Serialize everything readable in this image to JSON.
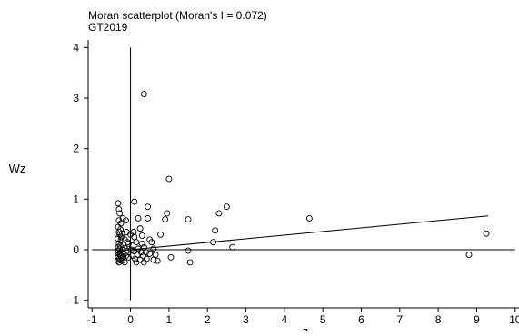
{
  "chart_data": {
    "type": "scatter",
    "title": "Moran scatterplot (Moran's I = 0.072)",
    "subtitle": "GT2019",
    "xlabel": "z",
    "ylabel": "Wz",
    "xlim": [
      -1.1,
      10.1
    ],
    "ylim": [
      -1.15,
      4.15
    ],
    "xticks": [
      "-1",
      "0",
      "1",
      "2",
      "3",
      "4",
      "5",
      "6",
      "7",
      "8",
      "9",
      "10"
    ],
    "yticks": [
      "-1",
      "0",
      "1",
      "2",
      "3",
      "4"
    ],
    "grid": false,
    "fit_line": {
      "intercept": 0.0,
      "slope": 0.072
    },
    "reference_lines": {
      "x": 0,
      "y": 0
    },
    "colors": {
      "points": "#000000",
      "axes": "#000000",
      "background": "#ffffff"
    },
    "points": [
      [
        0.35,
        3.08
      ],
      [
        1.0,
        1.4
      ],
      [
        0.1,
        0.95
      ],
      [
        0.45,
        0.85
      ],
      [
        0.95,
        0.72
      ],
      [
        0.2,
        0.62
      ],
      [
        0.45,
        0.62
      ],
      [
        0.9,
        0.6
      ],
      [
        1.5,
        0.6
      ],
      [
        2.3,
        0.72
      ],
      [
        2.5,
        0.85
      ],
      [
        4.65,
        0.62
      ],
      [
        2.2,
        0.38
      ],
      [
        2.15,
        0.15
      ],
      [
        2.65,
        0.05
      ],
      [
        1.5,
        -0.02
      ],
      [
        1.55,
        -0.25
      ],
      [
        1.05,
        -0.15
      ],
      [
        0.7,
        -0.22
      ],
      [
        0.6,
        -0.2
      ],
      [
        0.78,
        0.3
      ],
      [
        0.55,
        0.15
      ],
      [
        0.25,
        0.42
      ],
      [
        0.35,
        0.05
      ],
      [
        9.25,
        0.32
      ],
      [
        8.8,
        -0.1
      ],
      [
        -0.32,
        0.92
      ],
      [
        -0.3,
        0.8
      ],
      [
        -0.28,
        0.72
      ],
      [
        -0.2,
        0.62
      ],
      [
        -0.12,
        0.58
      ],
      [
        -0.3,
        0.58
      ],
      [
        -0.25,
        0.52
      ],
      [
        -0.32,
        0.45
      ],
      [
        -0.26,
        0.4
      ],
      [
        -0.3,
        0.35
      ],
      [
        -0.22,
        0.32
      ],
      [
        -0.28,
        0.3
      ],
      [
        -0.33,
        0.22
      ],
      [
        -0.25,
        0.18
      ],
      [
        -0.15,
        0.2
      ],
      [
        -0.3,
        0.12
      ],
      [
        -0.2,
        0.1
      ],
      [
        -0.05,
        0.12
      ],
      [
        0.05,
        0.08
      ],
      [
        0.15,
        0.15
      ],
      [
        0.3,
        0.12
      ],
      [
        -0.32,
        0.05
      ],
      [
        -0.28,
        0.02
      ],
      [
        -0.22,
        0.0
      ],
      [
        -0.15,
        0.03
      ],
      [
        -0.08,
        -0.02
      ],
      [
        0.02,
        0.0
      ],
      [
        0.1,
        -0.03
      ],
      [
        0.2,
        0.02
      ],
      [
        0.28,
        -0.05
      ],
      [
        -0.33,
        -0.05
      ],
      [
        -0.3,
        -0.08
      ],
      [
        -0.27,
        -0.1
      ],
      [
        -0.24,
        -0.12
      ],
      [
        -0.2,
        -0.15
      ],
      [
        -0.32,
        -0.15
      ],
      [
        -0.29,
        -0.18
      ],
      [
        -0.26,
        -0.2
      ],
      [
        -0.33,
        -0.22
      ],
      [
        -0.3,
        -0.25
      ],
      [
        -0.22,
        -0.22
      ],
      [
        -0.18,
        -0.08
      ],
      [
        -0.12,
        -0.12
      ],
      [
        -0.05,
        -0.15
      ],
      [
        0.05,
        -0.12
      ],
      [
        0.12,
        -0.18
      ],
      [
        0.18,
        -0.1
      ],
      [
        0.25,
        -0.2
      ],
      [
        0.33,
        -0.12
      ],
      [
        0.4,
        -0.05
      ],
      [
        0.42,
        -0.18
      ],
      [
        0.5,
        -0.08
      ],
      [
        0.6,
        0.02
      ],
      [
        0.65,
        -0.1
      ],
      [
        0.1,
        0.25
      ],
      [
        0.0,
        0.3
      ],
      [
        -0.1,
        0.35
      ],
      [
        0.15,
        -0.25
      ],
      [
        -0.15,
        -0.25
      ],
      [
        -0.27,
        0.08
      ],
      [
        -0.31,
        -0.02
      ],
      [
        -0.24,
        0.25
      ],
      [
        0.5,
        0.2
      ],
      [
        0.35,
        -0.25
      ],
      [
        -0.08,
        0.15
      ],
      [
        0.08,
        0.35
      ],
      [
        0.3,
        0.28
      ]
    ]
  }
}
